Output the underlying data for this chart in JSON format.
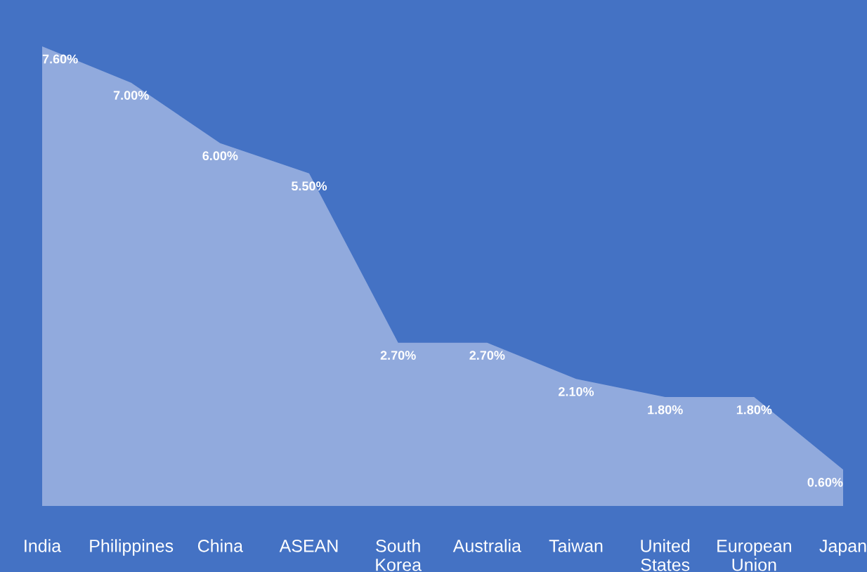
{
  "chart_data": {
    "type": "area",
    "categories": [
      "India",
      "Philippines",
      "China",
      "ASEAN",
      "South Korea",
      "Australia",
      "Taiwan",
      "United States",
      "European Union",
      "Japan"
    ],
    "series": [
      {
        "color": "#9fb4e2",
        "values": [
          7.6,
          7.0,
          6.0,
          5.5,
          2.7,
          2.7,
          2.1,
          1.8,
          1.8,
          0.6
        ],
        "value_labels": [
          "7.60%",
          "7.00%",
          "6.00%",
          "5.50%",
          "2.70%",
          "2.70%",
          "2.10%",
          "1.80%",
          "1.80%",
          "0.60%"
        ]
      }
    ]
  }
}
